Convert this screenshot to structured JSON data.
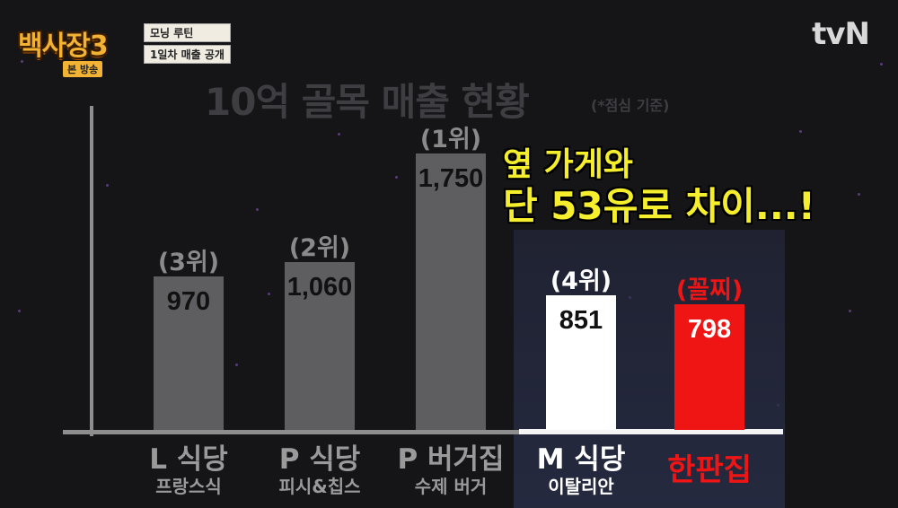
{
  "broadcast": {
    "show_logo": "백사장3",
    "episode_badge": "본 방송",
    "caption_lines": [
      "모닝 루틴",
      "1일차 매출 공개"
    ],
    "channel": "tvN"
  },
  "overlay": {
    "line1": "옆 가게와",
    "line2": "단 53유로 차이...!"
  },
  "chart_data": {
    "type": "bar",
    "title": "10억 골목 매출 현황",
    "subtitle": "(*점심 기준)",
    "categories": [
      "L 식당",
      "P 식당",
      "P 버거집",
      "M 식당",
      "한판집"
    ],
    "category_subtitles": [
      "프랑스식",
      "피시&칩스",
      "수제 버거",
      "이탈리안",
      ""
    ],
    "values": [
      970,
      1060,
      1750,
      851,
      798
    ],
    "value_labels": [
      "970",
      "1,060",
      "1,750",
      "851",
      "798"
    ],
    "ranks": [
      "(3위)",
      "(2위)",
      "(1위)",
      "(4위)",
      "(꼴찌)"
    ],
    "bar_colors": [
      "#5e5e60",
      "#5e5e60",
      "#5e5e60",
      "#ffffff",
      "#f01515"
    ],
    "value_text_colors": [
      "#111111",
      "#111111",
      "#111111",
      "#111111",
      "#ffffff"
    ],
    "rank_colors": [
      "#8a8a8a",
      "#8a8a8a",
      "#8a8a8a",
      "#ffffff",
      "#f01515"
    ],
    "label_colors": [
      "#9a9a9a",
      "#9a9a9a",
      "#9a9a9a",
      "#ffffff",
      "#f01515"
    ],
    "highlighted": [
      "M 식당",
      "한판집"
    ],
    "ylim": [
      0,
      1750
    ],
    "grid": false
  }
}
